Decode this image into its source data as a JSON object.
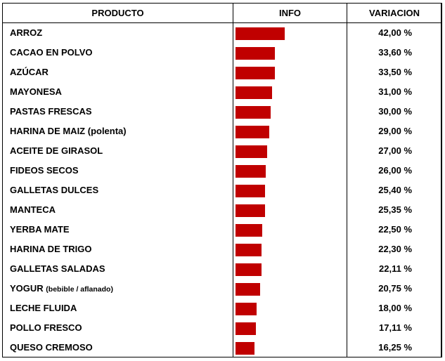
{
  "table": {
    "headers": {
      "product": "PRODUCTO",
      "info": "INFO",
      "variation": "VARIACION"
    }
  },
  "chart_data": {
    "type": "bar",
    "categories": [
      "ARROZ",
      "CACAO EN POLVO",
      "AZÚCAR",
      "MAYONESA",
      "PASTAS FRESCAS",
      "HARINA DE MAIZ (polenta)",
      "ACEITE DE GIRASOL",
      "FIDEOS SECOS",
      "GALLETAS DULCES",
      "MANTECA",
      "YERBA MATE",
      "HARINA DE TRIGO",
      "GALLETAS SALADAS",
      "YOGUR",
      "LECHE FLUIDA",
      "POLLO FRESCO",
      "QUESO CREMOSO"
    ],
    "category_notes": [
      "",
      "",
      "",
      "",
      "",
      "",
      "",
      "",
      "",
      "",
      "",
      "",
      "",
      "(bebible / aflanado)",
      "",
      "",
      ""
    ],
    "values": [
      42.0,
      33.6,
      33.5,
      31.0,
      30.0,
      29.0,
      27.0,
      26.0,
      25.4,
      25.35,
      22.5,
      22.3,
      22.11,
      20.75,
      18.0,
      17.11,
      16.25
    ],
    "value_labels": [
      "42,00 %",
      "33,60 %",
      "33,50 %",
      "31,00 %",
      "30,00 %",
      "29,00 %",
      "27,00 %",
      "26,00 %",
      "25,40 %",
      "25,35 %",
      "22,50 %",
      "22,30 %",
      "22,11 %",
      "20,75 %",
      "18,00 %",
      "17,11 %",
      "16,25 %"
    ],
    "orientation": "horizontal",
    "bar_color": "#c00000",
    "title": "",
    "xlabel": "",
    "ylabel": "",
    "grid": false,
    "legend": "none"
  }
}
